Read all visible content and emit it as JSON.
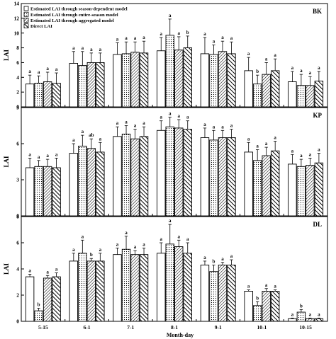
{
  "chart_data": {
    "type": "bar",
    "xlabel": "Month-day",
    "ylabel": "LAI",
    "categories": [
      "5-15",
      "6-1",
      "7-1",
      "8-1",
      "9-1",
      "10-1",
      "10-15"
    ],
    "legend": {
      "position": "top-left",
      "entries": [
        "Estimated LAI through season-dependent model",
        "Estimated LAI through entire-season  model",
        "Estimated LAI through aggregated  model",
        "Direct LAI"
      ]
    },
    "series_style": [
      {
        "fill": "#ffffff",
        "pattern": "none"
      },
      {
        "fill": "#ffffff",
        "pattern": "dots"
      },
      {
        "fill": "#ffffff",
        "pattern": "diagonal-thin"
      },
      {
        "fill": "#ffffff",
        "pattern": "diagonal-thick"
      }
    ],
    "panels": [
      {
        "name": "BK",
        "ylim": [
          0,
          14
        ],
        "yticks": [
          "0",
          "2",
          "4",
          "6",
          "8",
          "10",
          "12",
          "14"
        ],
        "series": [
          {
            "values": [
              3.1,
              5.9,
              7.1,
              7.6,
              7.2,
              4.9,
              3.4
            ],
            "errors": [
              1.2,
              1.6,
              1.6,
              1.8,
              2.2,
              1.8,
              1.4
            ],
            "labels": [
              "a",
              "a",
              "a",
              "a",
              "a",
              "a",
              "a"
            ]
          },
          {
            "values": [
              3.2,
              5.6,
              7.2,
              9.7,
              7.1,
              3.1,
              2.9
            ],
            "errors": [
              1.0,
              1.9,
              1.6,
              2.2,
              1.3,
              1.2,
              1.5
            ],
            "labels": [
              "a",
              "a",
              "a",
              "a",
              "a",
              "b",
              "a"
            ]
          },
          {
            "values": [
              3.4,
              6.0,
              7.4,
              7.7,
              7.5,
              4.4,
              2.9
            ],
            "errors": [
              1.3,
              1.3,
              1.4,
              1.8,
              1.4,
              1.6,
              1.2
            ],
            "labels": [
              "a",
              "a",
              "a",
              "a",
              "a",
              "a",
              "a"
            ]
          },
          {
            "values": [
              3.2,
              6.0,
              7.3,
              8.0,
              7.2,
              4.9,
              3.5
            ],
            "errors": [
              1.4,
              1.3,
              1.6,
              1.6,
              1.6,
              1.6,
              1.3
            ],
            "labels": [
              "a",
              "a",
              "a",
              "b",
              "a",
              "a",
              "a"
            ]
          }
        ]
      },
      {
        "name": "KP",
        "ylim": [
          0,
          9
        ],
        "yticks": [
          "0",
          "3",
          "6",
          "9"
        ],
        "series": [
          {
            "values": [
              4.0,
              5.2,
              6.6,
              7.1,
              6.5,
              5.3,
              4.3
            ],
            "errors": [
              0.8,
              0.8,
              0.8,
              0.8,
              0.8,
              0.8,
              0.8
            ],
            "labels": [
              "a",
              "a",
              "a",
              "a",
              "a",
              "a",
              "a"
            ]
          },
          {
            "values": [
              4.1,
              5.8,
              6.8,
              7.4,
              6.3,
              4.6,
              4.1
            ],
            "errors": [
              0.5,
              0.9,
              0.7,
              0.8,
              0.8,
              0.9,
              0.6
            ],
            "labels": [
              "a",
              "a",
              "a",
              "a",
              "a",
              "a",
              "a"
            ]
          },
          {
            "values": [
              4.1,
              5.6,
              6.4,
              7.3,
              6.5,
              5.0,
              4.2
            ],
            "errors": [
              0.6,
              0.8,
              0.8,
              0.7,
              0.6,
              0.7,
              0.6
            ],
            "labels": [
              "a",
              "ab",
              "a",
              "a",
              "a",
              "a",
              "a"
            ]
          },
          {
            "values": [
              4.0,
              5.3,
              6.6,
              7.2,
              6.5,
              5.4,
              4.4
            ],
            "errors": [
              0.8,
              0.8,
              0.8,
              0.7,
              0.7,
              0.8,
              0.8
            ],
            "labels": [
              "a",
              "a",
              "a",
              "a",
              "a",
              "a",
              "a"
            ]
          }
        ]
      },
      {
        "name": "DL",
        "ylim": [
          0,
          8
        ],
        "yticks": [
          "0",
          "2",
          "4",
          "6",
          "8"
        ],
        "series": [
          {
            "values": [
              3.4,
              4.6,
              5.1,
              5.2,
              4.3,
              2.3,
              0.2
            ],
            "errors": [
              0.2,
              0.6,
              0.5,
              0.8,
              0.3,
              0.1,
              0.05
            ],
            "labels": [
              "a",
              "a",
              "a",
              "a",
              "a",
              "a",
              "a"
            ]
          },
          {
            "values": [
              0.8,
              5.2,
              5.5,
              5.9,
              3.8,
              1.2,
              0.7
            ],
            "errors": [
              0.2,
              1.0,
              1.0,
              1.5,
              0.5,
              0.3,
              0.2
            ],
            "labels": [
              "b",
              "a",
              "a",
              "a",
              "b",
              "b",
              "b"
            ]
          },
          {
            "values": [
              3.3,
              4.6,
              5.1,
              5.7,
              4.3,
              2.3,
              0.2
            ],
            "errors": [
              0.2,
              0.2,
              0.3,
              0.5,
              0.2,
              0.2,
              0.05
            ],
            "labels": [
              "a",
              "b",
              "a",
              "a",
              "a",
              "a",
              "a"
            ]
          },
          {
            "values": [
              3.4,
              4.6,
              5.1,
              5.2,
              4.3,
              2.3,
              0.2
            ],
            "errors": [
              0.3,
              0.6,
              0.5,
              0.8,
              0.4,
              0.1,
              0.05
            ],
            "labels": [
              "a",
              "a",
              "a",
              "a",
              "a",
              "a",
              "a"
            ]
          }
        ]
      }
    ]
  }
}
